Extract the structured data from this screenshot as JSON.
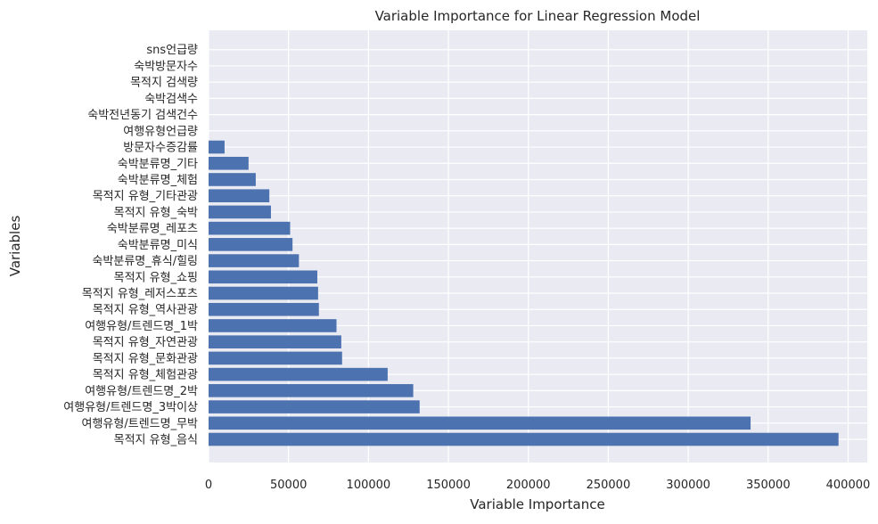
{
  "chart_data": {
    "type": "bar",
    "orientation": "horizontal",
    "title": "Variable Importance for Linear Regression Model",
    "xlabel": "Variable Importance",
    "ylabel": "Variables",
    "xlim": [
      0,
      412000
    ],
    "xticks": [
      0,
      50000,
      100000,
      150000,
      200000,
      250000,
      300000,
      350000,
      400000
    ],
    "grid": true,
    "bar_color": "#4c72b0",
    "background_color": "#eaeaf2",
    "categories": [
      "목적지 유형_음식",
      "여행유형/트렌드명_무박",
      "여행유형/트렌드명_3박이상",
      "여행유형/트렌드명_2박",
      "목적지 유형_체험관광",
      "목적지 유형_문화관광",
      "목적지 유형_자연관광",
      "여행유형/트렌드명_1박",
      "목적지 유형_역사관광",
      "목적지 유형_레저스포츠",
      "목적지 유형_쇼핑",
      "숙박분류명_휴식/힐링",
      "숙박분류명_미식",
      "숙박분류명_레포츠",
      "목적지 유형_숙박",
      "목적지 유형_기타관광",
      "숙박분류명_체험",
      "숙박분류명_기타",
      "방문자수증감률",
      "여행유형언급량",
      "숙박전년동기 검색건수",
      "숙박검색수",
      "목적지 검색량",
      "숙박방문자수",
      "sns언급량"
    ],
    "values": [
      394000,
      339000,
      132000,
      128000,
      112000,
      83500,
      83000,
      80000,
      69000,
      68500,
      68000,
      56500,
      52500,
      51000,
      39000,
      38000,
      29500,
      25000,
      10000,
      0,
      0,
      0,
      0,
      0,
      0
    ]
  }
}
